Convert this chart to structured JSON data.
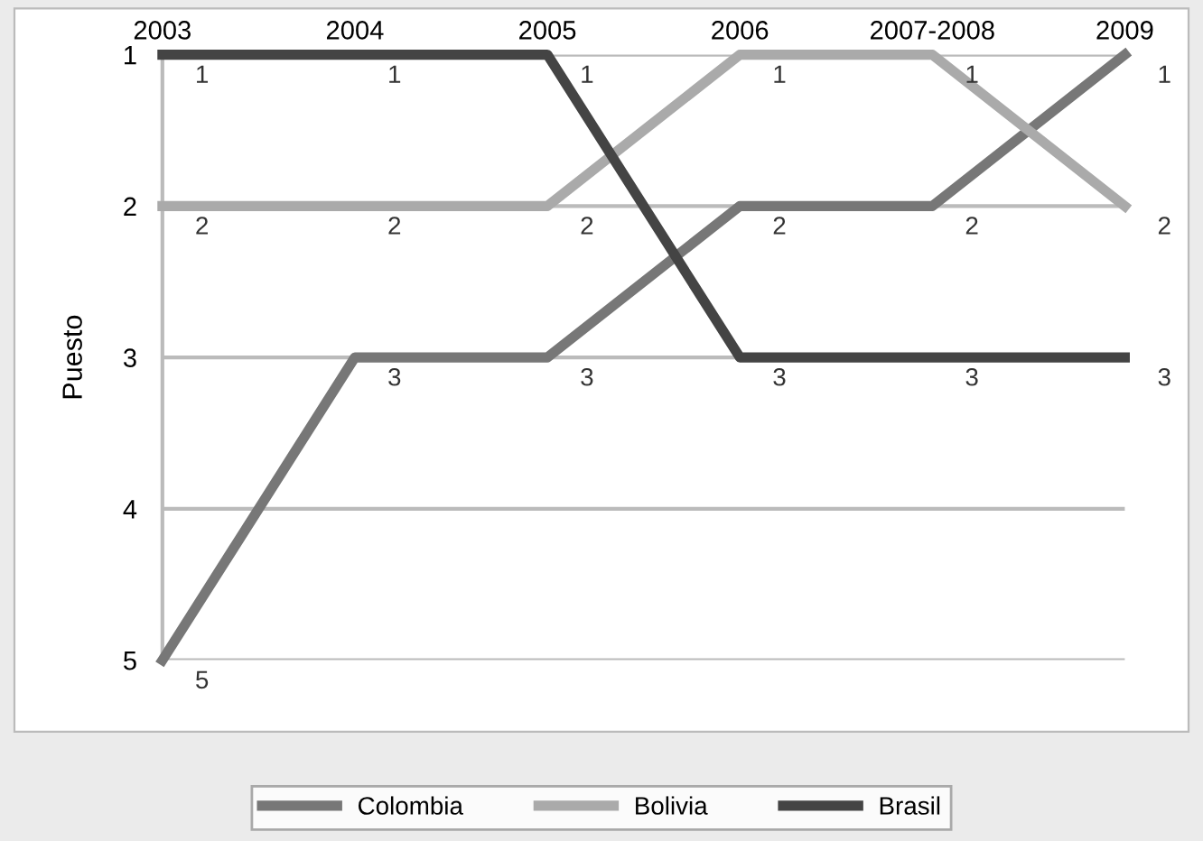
{
  "chart_data": {
    "type": "line",
    "ylabel": "Puesto",
    "categories": [
      "2003",
      "2004",
      "2005",
      "2006",
      "2007-2008",
      "2009"
    ],
    "series": [
      {
        "name": "Colombia",
        "color": "#777777",
        "values": [
          5,
          3,
          3,
          2,
          2,
          1
        ]
      },
      {
        "name": "Bolivia",
        "color": "#aaaaaa",
        "values": [
          2,
          2,
          2,
          1,
          1,
          2
        ]
      },
      {
        "name": "Brasil",
        "color": "#444444",
        "values": [
          1,
          1,
          1,
          3,
          3,
          3
        ]
      }
    ],
    "ylim": [
      5,
      1
    ],
    "yticks": [
      1,
      2,
      3,
      4,
      5
    ],
    "grid": "y",
    "legend": "bottom",
    "data_labels": true,
    "marker": "none",
    "line_style": "solid"
  }
}
